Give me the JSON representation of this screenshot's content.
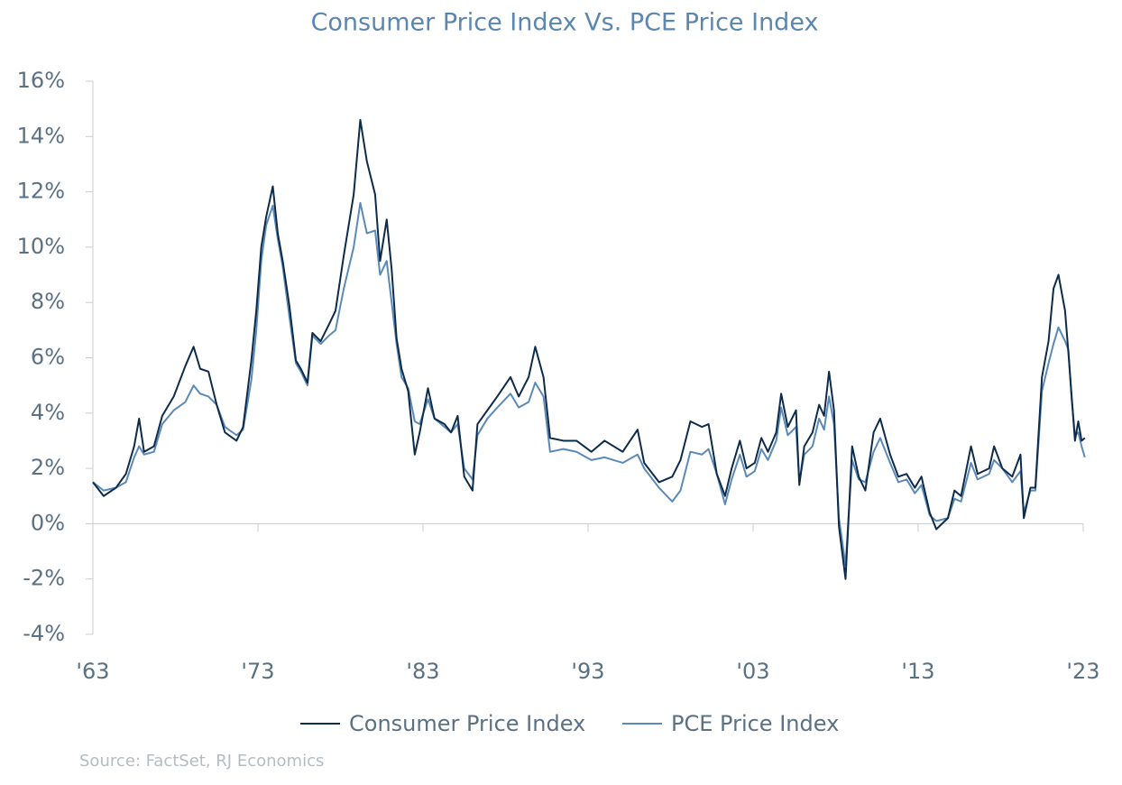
{
  "chart_data": {
    "type": "line",
    "title": "Consumer Price Index Vs. PCE Price Index",
    "source": "Source: FactSet, RJ Economics",
    "x": [
      1963.0,
      1963.65,
      1964.4,
      1965.0,
      1965.5,
      1965.8,
      1966.1,
      1966.7,
      1967.2,
      1967.9,
      1968.6,
      1969.1,
      1969.5,
      1970.0,
      1970.5,
      1971.0,
      1971.7,
      1972.1,
      1972.6,
      1972.9,
      1973.2,
      1973.5,
      1973.9,
      1974.2,
      1974.5,
      1974.9,
      1975.3,
      1975.6,
      1976.0,
      1976.3,
      1976.8,
      1977.3,
      1977.7,
      1978.2,
      1978.8,
      1979.2,
      1979.6,
      1980.1,
      1980.4,
      1980.8,
      1981.1,
      1981.4,
      1981.7,
      1982.1,
      1982.5,
      1982.8,
      1983.3,
      1983.7,
      1984.3,
      1984.7,
      1985.1,
      1985.5,
      1986.0,
      1986.3,
      1986.9,
      1987.5,
      1988.3,
      1988.8,
      1989.4,
      1989.8,
      1990.3,
      1990.7,
      1991.5,
      1992.3,
      1993.2,
      1994.0,
      1995.1,
      1996.0,
      1996.4,
      1997.3,
      1998.1,
      1998.6,
      1999.2,
      1999.9,
      2000.3,
      2000.8,
      2001.3,
      2001.7,
      2002.2,
      2002.6,
      2003.1,
      2003.5,
      2003.9,
      2004.4,
      2004.7,
      2005.1,
      2005.6,
      2005.8,
      2006.1,
      2006.6,
      2007.0,
      2007.3,
      2007.6,
      2007.9,
      2008.2,
      2008.6,
      2009.0,
      2009.4,
      2009.8,
      2010.3,
      2010.7,
      2011.3,
      2011.8,
      2012.3,
      2012.8,
      2013.2,
      2013.7,
      2014.1,
      2014.8,
      2015.2,
      2015.6,
      2016.2,
      2016.6,
      2017.3,
      2017.6,
      2018.1,
      2018.7,
      2019.2,
      2019.4,
      2019.8,
      2020.1,
      2020.5,
      2020.9,
      2021.2,
      2021.5,
      2021.9,
      2022.1,
      2022.3,
      2022.5,
      2022.7,
      2022.9,
      2023.1
    ],
    "series": [
      {
        "name": "Consumer Price Index",
        "color": "#0d2b4a",
        "values": [
          1.5,
          1.0,
          1.3,
          1.8,
          2.8,
          3.8,
          2.6,
          2.8,
          3.9,
          4.6,
          5.7,
          6.4,
          5.6,
          5.5,
          4.3,
          3.3,
          3.0,
          3.5,
          5.9,
          7.7,
          10.0,
          11.1,
          12.2,
          10.5,
          9.5,
          7.9,
          5.9,
          5.6,
          5.1,
          6.9,
          6.6,
          7.2,
          7.7,
          9.7,
          11.9,
          14.6,
          13.1,
          11.9,
          9.5,
          11.0,
          9.2,
          6.7,
          5.6,
          4.8,
          2.5,
          3.3,
          4.9,
          3.8,
          3.6,
          3.3,
          3.9,
          1.7,
          1.2,
          3.6,
          4.1,
          4.6,
          5.3,
          4.6,
          5.3,
          6.4,
          5.3,
          3.1,
          3.0,
          3.0,
          2.6,
          3.0,
          2.6,
          3.4,
          2.2,
          1.5,
          1.7,
          2.3,
          3.7,
          3.5,
          3.6,
          1.8,
          1.0,
          2.0,
          3.0,
          2.0,
          2.2,
          3.1,
          2.6,
          3.3,
          4.7,
          3.5,
          4.1,
          1.4,
          2.8,
          3.3,
          4.3,
          3.9,
          5.5,
          4.1,
          -0.1,
          -2.0,
          2.8,
          1.7,
          1.2,
          3.3,
          3.8,
          2.5,
          1.7,
          1.8,
          1.3,
          1.7,
          0.4,
          -0.2,
          0.2,
          1.2,
          1.0,
          2.8,
          1.8,
          2.0,
          2.8,
          2.0,
          1.7,
          2.5,
          0.2,
          1.3,
          1.3,
          5.3,
          6.6,
          8.5,
          9.0,
          7.7,
          6.2,
          4.6,
          3.0,
          3.7,
          3.0,
          3.1
        ]
      },
      {
        "name": "PCE Price Index",
        "color": "#5b8ab8",
        "values": [
          1.5,
          1.2,
          1.3,
          1.5,
          2.4,
          2.8,
          2.5,
          2.6,
          3.6,
          4.1,
          4.4,
          5.0,
          4.7,
          4.6,
          4.3,
          3.5,
          3.2,
          3.4,
          5.2,
          7.0,
          9.5,
          10.8,
          11.5,
          10.3,
          9.3,
          7.5,
          5.8,
          5.5,
          5.0,
          6.8,
          6.5,
          6.8,
          7.0,
          8.5,
          10.0,
          11.6,
          10.5,
          10.6,
          9.0,
          9.5,
          8.0,
          6.5,
          5.3,
          4.9,
          3.7,
          3.6,
          4.5,
          3.8,
          3.5,
          3.3,
          3.6,
          2.0,
          1.6,
          3.2,
          3.8,
          4.2,
          4.7,
          4.2,
          4.4,
          5.1,
          4.6,
          2.6,
          2.7,
          2.6,
          2.3,
          2.4,
          2.2,
          2.5,
          2.0,
          1.3,
          0.8,
          1.2,
          2.6,
          2.5,
          2.7,
          1.8,
          0.7,
          1.6,
          2.5,
          1.7,
          1.9,
          2.7,
          2.3,
          3.0,
          4.2,
          3.2,
          3.5,
          1.5,
          2.5,
          2.8,
          3.8,
          3.4,
          4.6,
          3.6,
          0.2,
          -1.5,
          2.3,
          1.6,
          1.5,
          2.6,
          3.1,
          2.2,
          1.5,
          1.6,
          1.1,
          1.4,
          0.3,
          0.1,
          0.2,
          0.9,
          0.8,
          2.2,
          1.6,
          1.8,
          2.3,
          2.0,
          1.5,
          1.9,
          0.4,
          1.2,
          1.2,
          4.8,
          5.8,
          6.5,
          7.1,
          6.6,
          6.3,
          4.5,
          3.2,
          3.3,
          2.8,
          2.4
        ]
      }
    ],
    "xlim": [
      1963,
      2023
    ],
    "xticks": [
      {
        "value": 1963,
        "label": "'63"
      },
      {
        "value": 1973,
        "label": "'73"
      },
      {
        "value": 1983,
        "label": "'83"
      },
      {
        "value": 1993,
        "label": "'93"
      },
      {
        "value": 2003,
        "label": "'03"
      },
      {
        "value": 2013,
        "label": "'13"
      },
      {
        "value": 2023,
        "label": "'23"
      }
    ],
    "ylim": [
      -4,
      16
    ],
    "yticks": [
      {
        "value": -4,
        "label": "-4%"
      },
      {
        "value": -2,
        "label": "-2%"
      },
      {
        "value": 0,
        "label": "0%"
      },
      {
        "value": 2,
        "label": "2%"
      },
      {
        "value": 4,
        "label": "4%"
      },
      {
        "value": 6,
        "label": "6%"
      },
      {
        "value": 8,
        "label": "8%"
      },
      {
        "value": 10,
        "label": "10%"
      },
      {
        "value": 12,
        "label": "12%"
      },
      {
        "value": 14,
        "label": "14%"
      },
      {
        "value": 16,
        "label": "16%"
      }
    ],
    "legend": "bottom"
  }
}
